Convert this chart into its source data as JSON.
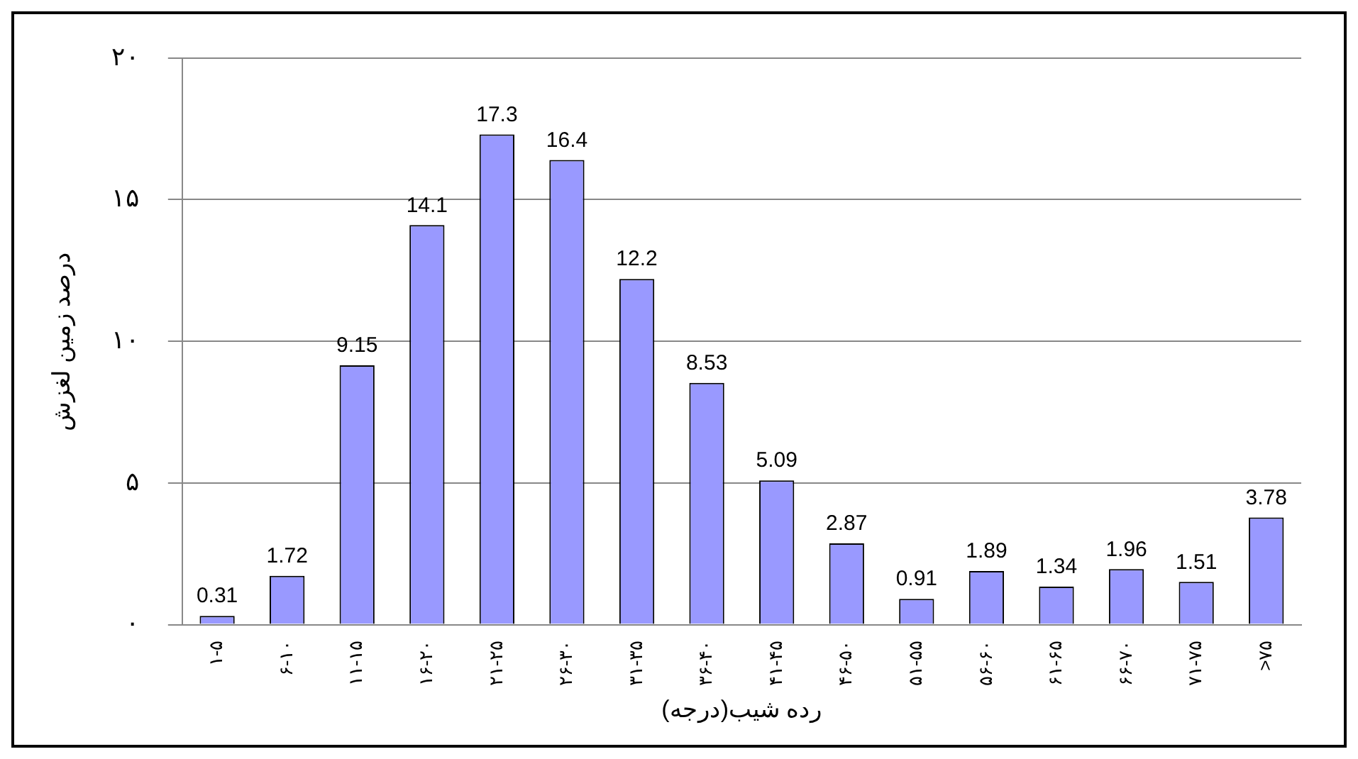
{
  "chart_data": {
    "type": "bar",
    "xlabel": "رده شیب(درجه)",
    "ylabel": "درصد زمین لغزش",
    "categories": [
      "۱-۵",
      "۶-۱۰",
      "۱۱-۱۵",
      "۱۶-۲۰",
      "۲۱-۲۵",
      "۲۶-۳۰",
      "۳۱-۳۵",
      "۳۶-۴۰",
      "۴۱-۴۵",
      "۴۶-۵۰",
      "۵۱-۵۵",
      "۵۶-۶۰",
      "۶۱-۶۵",
      "۶۶-۷۰",
      "۷۱-۷۵",
      ">۷۵"
    ],
    "values": [
      0.31,
      1.72,
      9.15,
      14.1,
      17.3,
      16.4,
      12.2,
      8.53,
      5.09,
      2.87,
      0.91,
      1.89,
      1.34,
      1.96,
      1.51,
      3.78
    ],
    "color": "#9999ff",
    "ylim": [
      0,
      20
    ],
    "yticks": [
      {
        "value": 0,
        "label": "۰"
      },
      {
        "value": 5,
        "label": "۵"
      },
      {
        "value": 10,
        "label": "۱۰"
      },
      {
        "value": 15,
        "label": "۱۵"
      },
      {
        "value": 20,
        "label": "۲۰"
      }
    ],
    "grid": "y",
    "data_labels": true,
    "legend": false
  }
}
